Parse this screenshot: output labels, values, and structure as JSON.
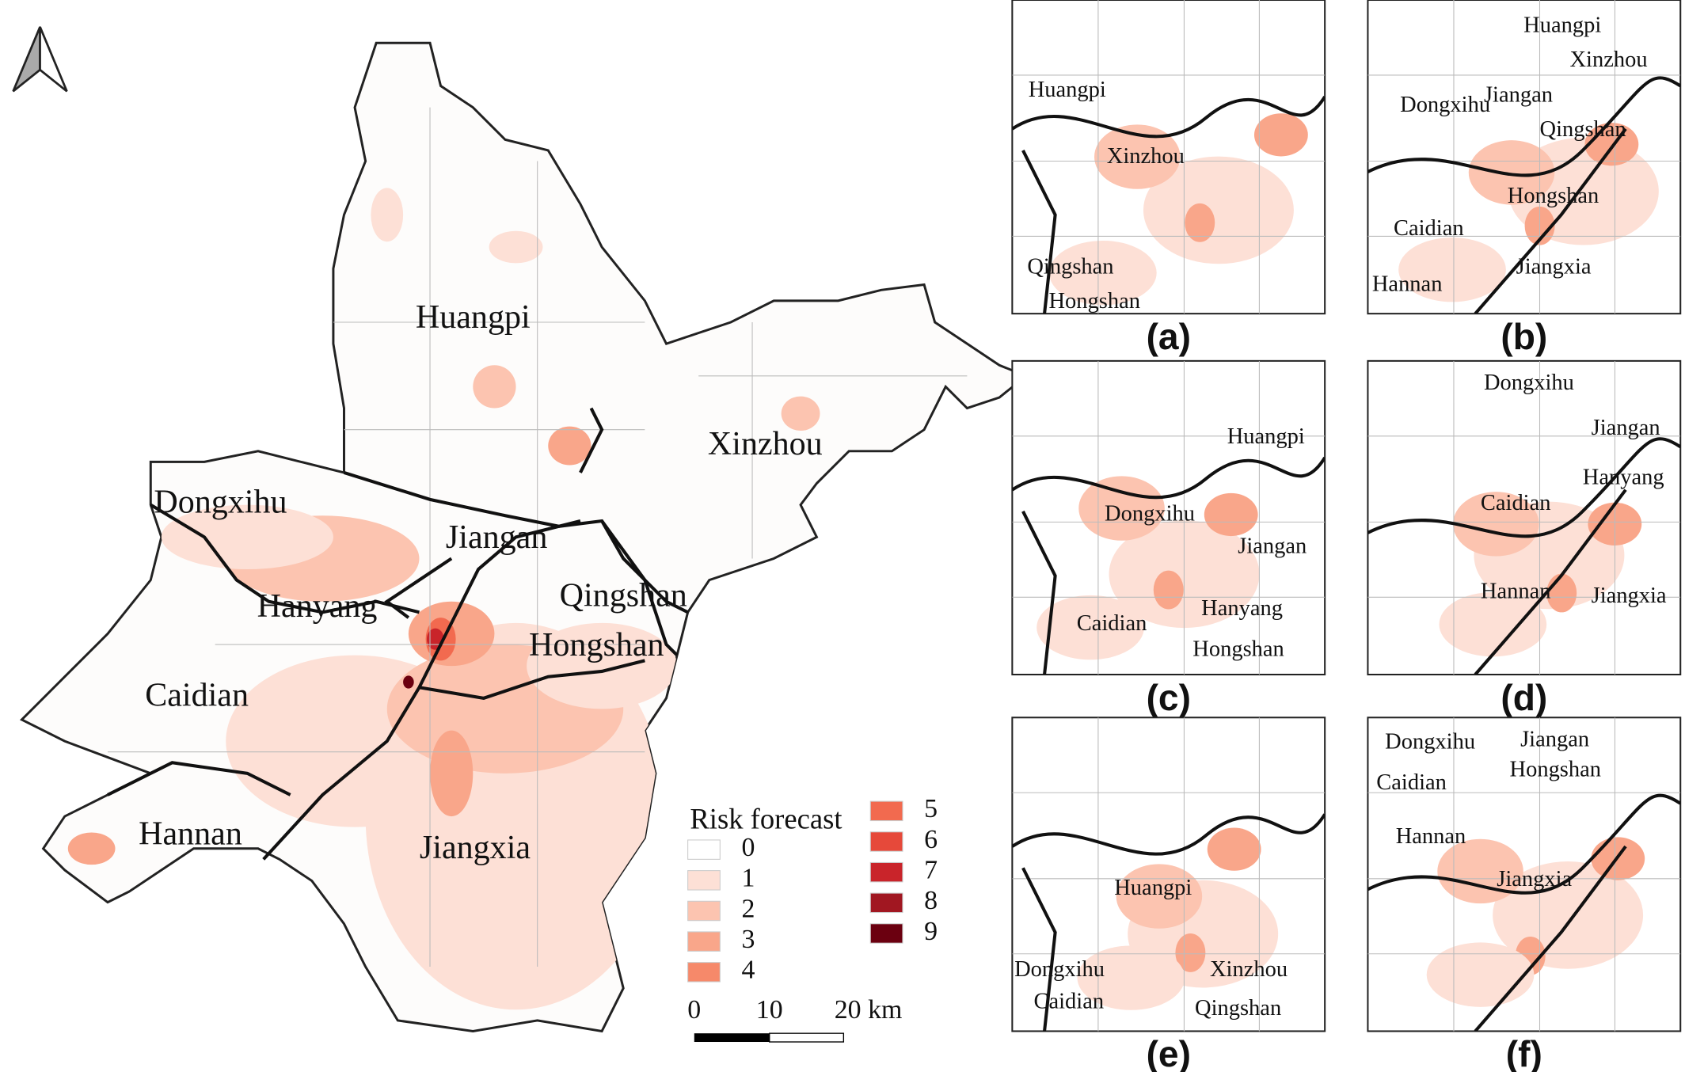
{
  "map": {
    "districts": [
      "Huangpi",
      "Xinzhou",
      "Dongxihu",
      "Jiangan",
      "Hanyang",
      "Qingshan",
      "Hongshan",
      "Caidian",
      "Hannan",
      "Jiangxia"
    ],
    "legend": {
      "title": "Risk forecast",
      "items": [
        {
          "value": 0,
          "color": "#ffffff"
        },
        {
          "value": 1,
          "color": "#fde0d6"
        },
        {
          "value": 2,
          "color": "#fcc4b0"
        },
        {
          "value": 3,
          "color": "#f9a68a"
        },
        {
          "value": 4,
          "color": "#f6896a"
        },
        {
          "value": 5,
          "color": "#f26a4f"
        },
        {
          "value": 6,
          "color": "#e6493a"
        },
        {
          "value": 7,
          "color": "#c9242a"
        },
        {
          "value": 8,
          "color": "#a11721"
        },
        {
          "value": 9,
          "color": "#6b0010"
        }
      ]
    },
    "scale_bar": {
      "labels": [
        "0",
        "10",
        "20 km"
      ]
    }
  },
  "panels": [
    {
      "caption": "(a)",
      "labels": [
        "Huangpi",
        "Xinzhou",
        "Qingshan",
        "Hongshan"
      ]
    },
    {
      "caption": "(b)",
      "labels": [
        "Huangpi",
        "Xinzhou",
        "Dongxihu",
        "Jiangan",
        "Qingshan",
        "Hongshan",
        "Caidian",
        "Hannan",
        "Jiangxia"
      ]
    },
    {
      "caption": "(c)",
      "labels": [
        "Huangpi",
        "Dongxihu",
        "Jiangan",
        "Caidian",
        "Hanyang",
        "Hongshan"
      ]
    },
    {
      "caption": "(d)",
      "labels": [
        "Dongxihu",
        "Jiangan",
        "Hanyang",
        "Caidian",
        "Hannan",
        "Jiangxia"
      ]
    },
    {
      "caption": "(e)",
      "labels": [
        "Huangpi",
        "Dongxihu",
        "Xinzhou",
        "Caidian",
        "Qingshan"
      ]
    },
    {
      "caption": "(f)",
      "labels": [
        "Dongxihu",
        "Jiangan",
        "Caidian",
        "Hongshan",
        "Hannan",
        "Jiangxia"
      ]
    }
  ]
}
